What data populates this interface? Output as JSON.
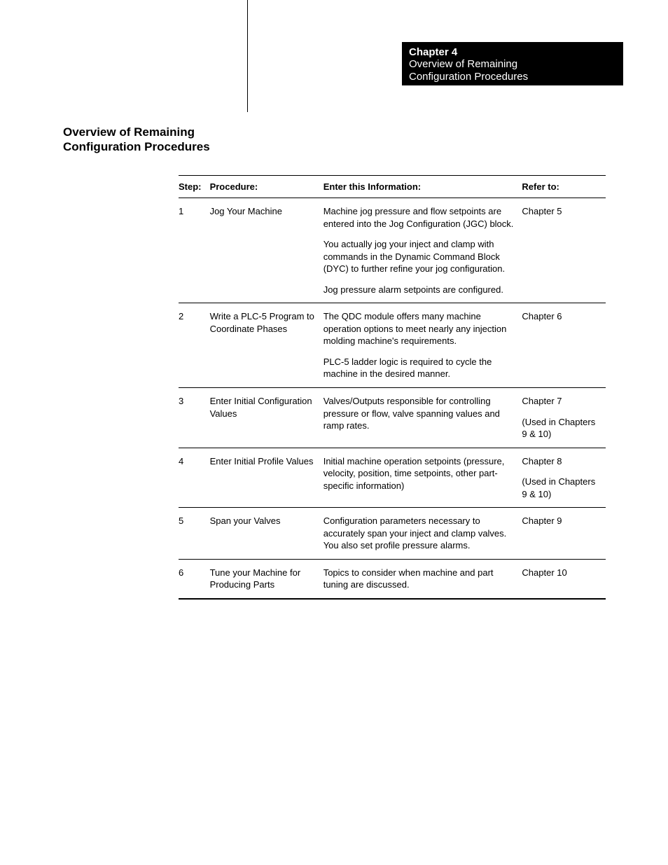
{
  "header": {
    "chapter_label": "Chapter 4",
    "subtitle_line1": "Overview of Remaining",
    "subtitle_line2": "Configuration Procedures"
  },
  "section_title": {
    "line1": "Overview of Remaining",
    "line2": "Configuration Procedures"
  },
  "table": {
    "columns": {
      "step": "Step:",
      "procedure": "Procedure:",
      "info": "Enter this Information:",
      "refer": "Refer to:"
    },
    "rows": [
      {
        "step": "1",
        "procedure": "Jog Your Machine",
        "info_p1": "Machine jog pressure and flow setpoints are entered into the Jog Configuration (JGC) block.",
        "info_p2": "You actually jog your inject and clamp with commands in the Dynamic Command Block (DYC) to further refine your jog configuration.",
        "info_p3": "Jog pressure alarm setpoints are configured.",
        "refer_p1": "Chapter 5",
        "refer_p2": ""
      },
      {
        "step": "2",
        "procedure": "Write a PLC-5 Program to Coordinate Phases",
        "info_p1": "The QDC module offers many machine operation options to meet nearly any injection molding machine's requirements.",
        "info_p2": "PLC-5 ladder logic is required to cycle the machine in the desired manner.",
        "info_p3": "",
        "refer_p1": "Chapter 6",
        "refer_p2": ""
      },
      {
        "step": "3",
        "procedure": "Enter Initial Configuration Values",
        "info_p1": "Valves/Outputs responsible for controlling pressure or flow, valve spanning values and ramp rates.",
        "info_p2": "",
        "info_p3": "",
        "refer_p1": "Chapter 7",
        "refer_p2": "(Used in Chapters 9 & 10)"
      },
      {
        "step": "4",
        "procedure": "Enter Initial Profile Values",
        "info_p1": "Initial machine operation setpoints (pressure, velocity, position, time setpoints, other part-specific information)",
        "info_p2": "",
        "info_p3": "",
        "refer_p1": "Chapter 8",
        "refer_p2": "(Used in Chapters 9 & 10)"
      },
      {
        "step": "5",
        "procedure": "Span your Valves",
        "info_p1": "Configuration parameters necessary to accurately span your inject and clamp valves.  You also set profile pressure alarms.",
        "info_p2": "",
        "info_p3": "",
        "refer_p1": "Chapter 9",
        "refer_p2": ""
      },
      {
        "step": "6",
        "procedure": "Tune your Machine for Producing Parts",
        "info_p1": "Topics to consider when machine and part tuning are discussed.",
        "info_p2": "",
        "info_p3": "",
        "refer_p1": "Chapter 10",
        "refer_p2": ""
      }
    ]
  },
  "style": {
    "background_color": "#ffffff",
    "text_color": "#000000",
    "header_bg": "#000000",
    "header_fg": "#ffffff",
    "border_color": "#000000",
    "body_fontsize": 13,
    "title_fontsize": 17,
    "header_fontsize": 15
  }
}
